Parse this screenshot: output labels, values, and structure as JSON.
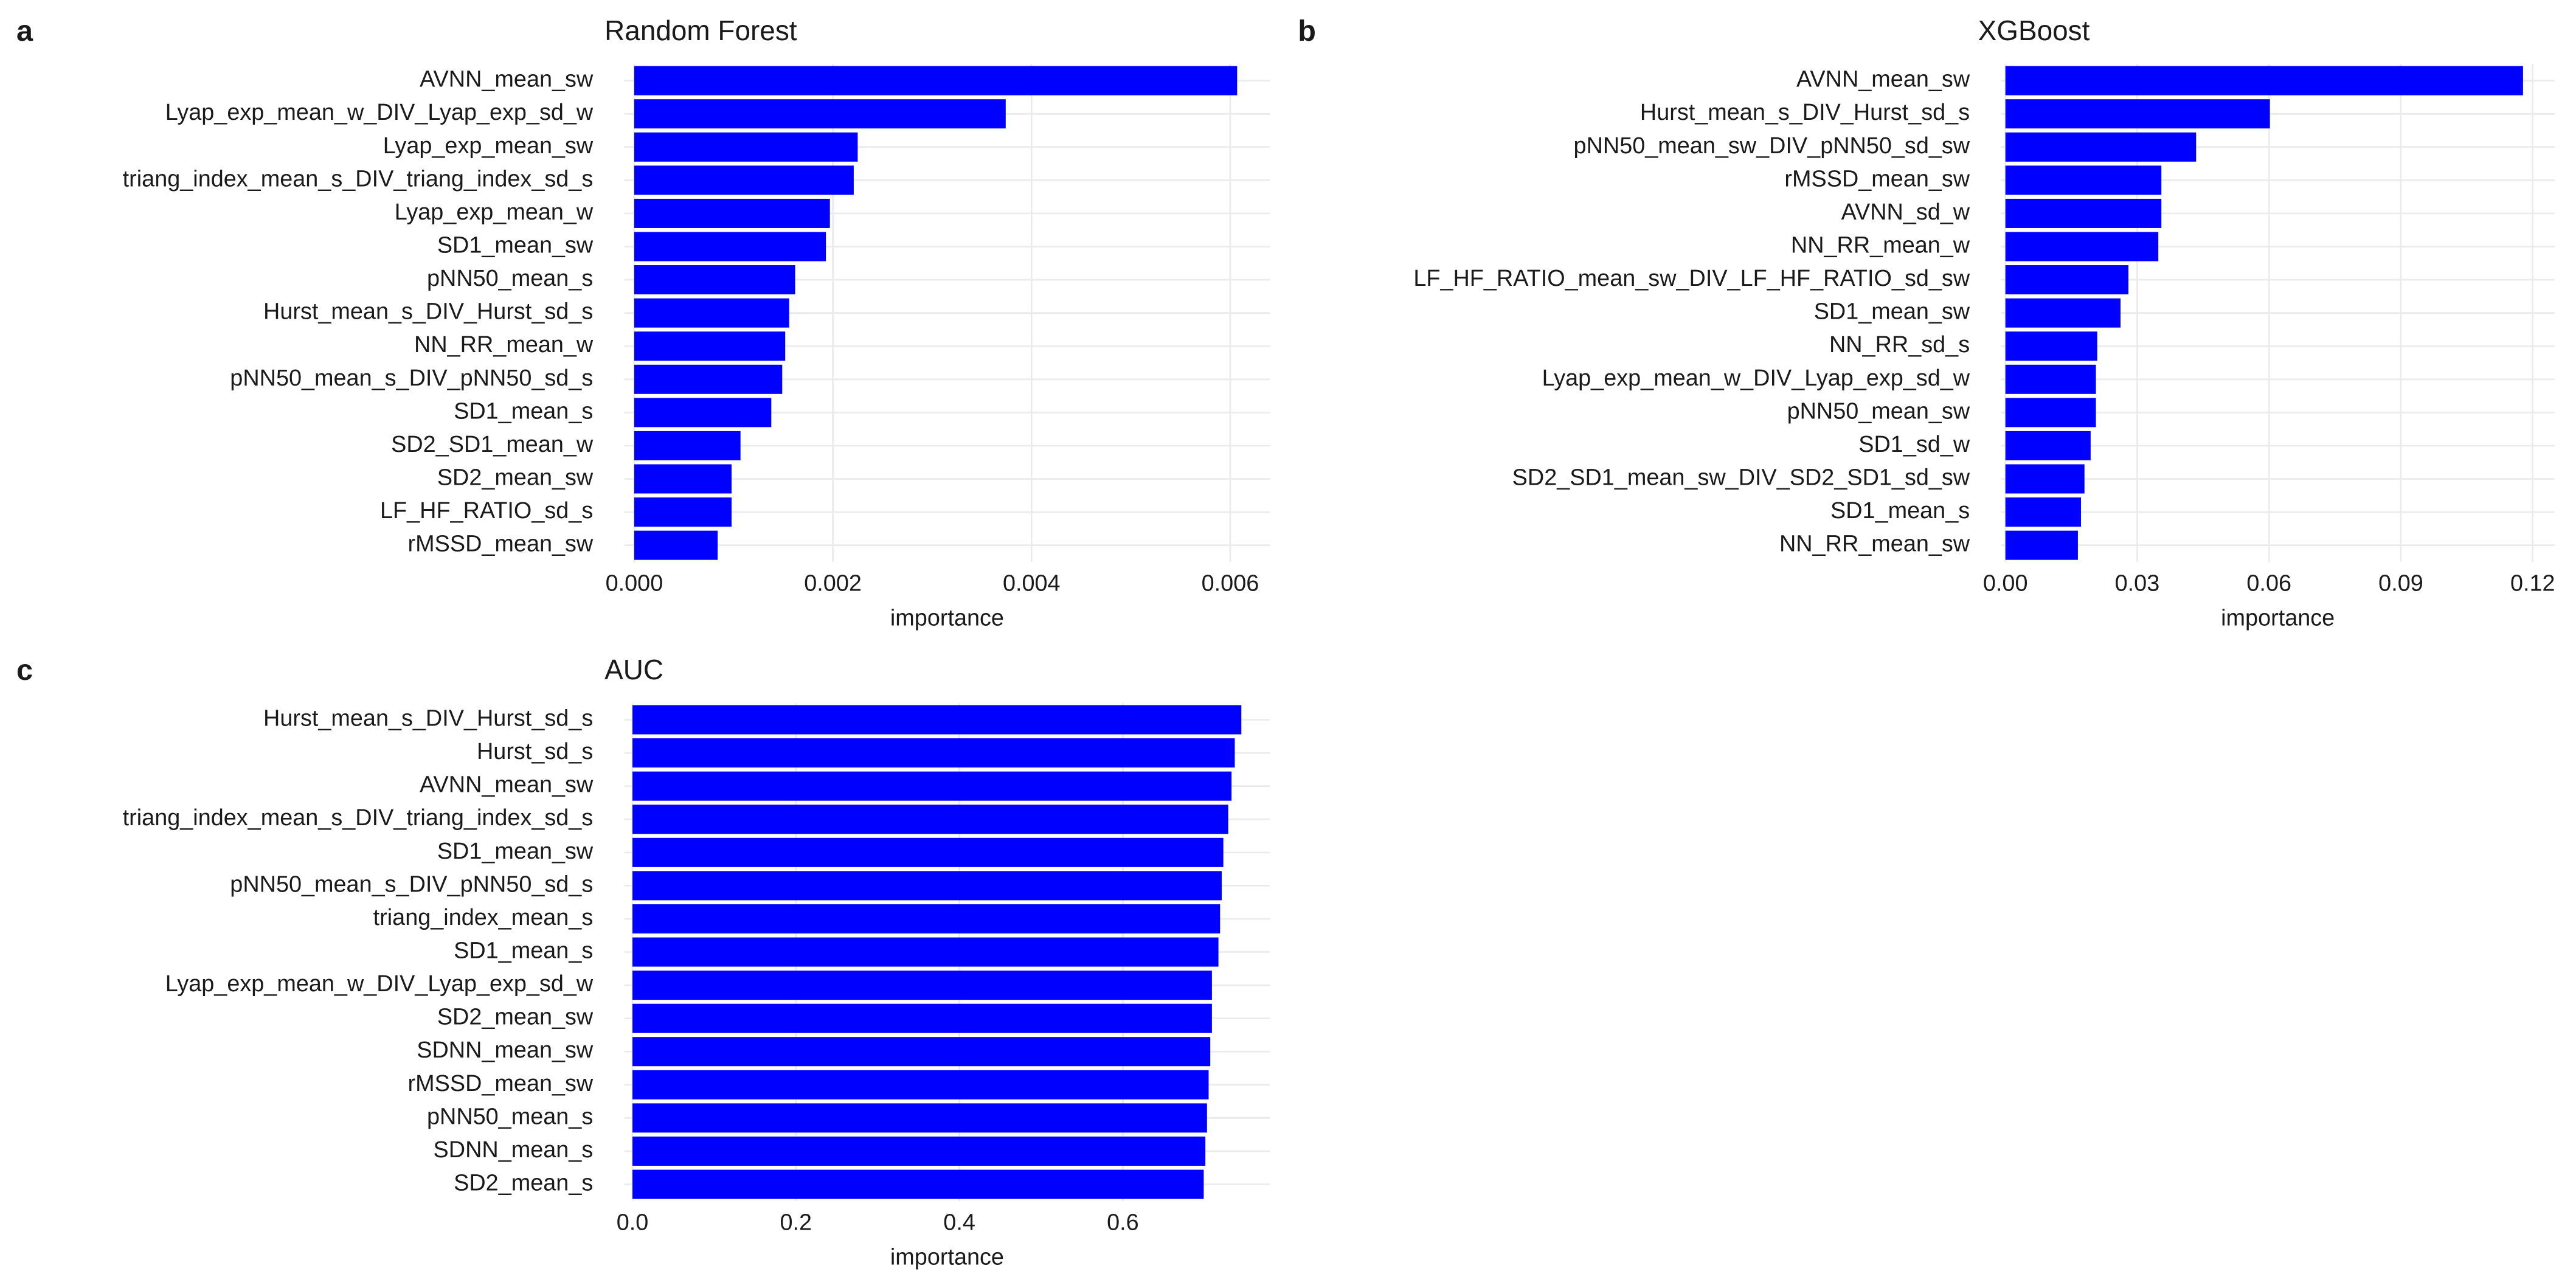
{
  "chart_data": [
    {
      "type": "barh",
      "panel": "a",
      "title": "Random Forest",
      "x_label": "importance",
      "color": "#0000ff",
      "grid": true,
      "categories": [
        "AVNN_mean_sw",
        "Lyap_exp_mean_w_DIV_Lyap_exp_sd_w",
        "Lyap_exp_mean_sw",
        "triang_index_mean_s_DIV_triang_index_sd_s",
        "Lyap_exp_mean_w",
        "SD1_mean_sw",
        "pNN50_mean_s",
        "Hurst_mean_s_DIV_Hurst_sd_s",
        "NN_RR_mean_w",
        "pNN50_mean_s_DIV_pNN50_sd_s",
        "SD1_mean_s",
        "SD2_SD1_mean_w",
        "SD2_mean_sw",
        "LF_HF_RATIO_sd_s",
        "rMSSD_mean_sw"
      ],
      "values": [
        0.00607,
        0.00374,
        0.00225,
        0.00221,
        0.00197,
        0.00193,
        0.00162,
        0.00156,
        0.00152,
        0.00149,
        0.00138,
        0.00107,
        0.00098,
        0.00098,
        0.00084
      ],
      "xlim": [
        -0.0001,
        0.0064
      ],
      "xticks": [
        {
          "value": 0,
          "label": "0.000"
        },
        {
          "value": 0.002,
          "label": "0.002"
        },
        {
          "value": 0.004,
          "label": "0.004"
        },
        {
          "value": 0.006,
          "label": "0.006"
        }
      ]
    },
    {
      "type": "barh",
      "panel": "b",
      "title": "XGBoost",
      "x_label": "importance",
      "color": "#0000ff",
      "grid": true,
      "categories": [
        "AVNN_mean_sw",
        "Hurst_mean_s_DIV_Hurst_sd_s",
        "pNN50_mean_sw_DIV_pNN50_sd_sw",
        "rMSSD_mean_sw",
        "AVNN_sd_w",
        "NN_RR_mean_w",
        "LF_HF_RATIO_mean_sw_DIV_LF_HF_RATIO_sd_sw",
        "SD1_mean_sw",
        "NN_RR_sd_s",
        "Lyap_exp_mean_w_DIV_Lyap_exp_sd_w",
        "pNN50_mean_sw",
        "SD1_sd_w",
        "SD2_SD1_mean_sw_DIV_SD2_SD1_sd_sw",
        "SD1_mean_s",
        "NN_RR_mean_sw"
      ],
      "values": [
        0.1178,
        0.0602,
        0.0434,
        0.0355,
        0.0355,
        0.0348,
        0.028,
        0.0262,
        0.0209,
        0.0206,
        0.0206,
        0.0194,
        0.018,
        0.0172,
        0.0165
      ],
      "xlim": [
        -0.001,
        0.125
      ],
      "xticks": [
        {
          "value": 0,
          "label": "0.00"
        },
        0.03,
        0.06,
        0.09,
        0.12
      ]
    },
    {
      "type": "barh",
      "panel": "c",
      "title": "AUC",
      "x_label": "importance",
      "color": "#0000ff",
      "grid": true,
      "categories": [
        "Hurst_mean_s_DIV_Hurst_sd_s",
        "Hurst_sd_s",
        "AVNN_mean_sw",
        "triang_index_mean_s_DIV_triang_index_sd_s",
        "SD1_mean_sw",
        "pNN50_mean_s_DIV_pNN50_sd_s",
        "triang_index_mean_s",
        "SD1_mean_s",
        "Lyap_exp_mean_w_DIV_Lyap_exp_sd_w",
        "SD2_mean_sw",
        "SDNN_mean_sw",
        "rMSSD_mean_sw",
        "pNN50_mean_s",
        "SDNN_mean_s",
        "SD2_mean_s"
      ],
      "values": [
        0.745,
        0.737,
        0.733,
        0.729,
        0.723,
        0.721,
        0.719,
        0.717,
        0.709,
        0.709,
        0.707,
        0.705,
        0.703,
        0.701,
        0.699
      ],
      "xlim": [
        -0.01,
        0.78
      ],
      "xticks": [
        {
          "value": 0,
          "label": "0.0"
        },
        0.2,
        0.4,
        0.6
      ]
    }
  ]
}
